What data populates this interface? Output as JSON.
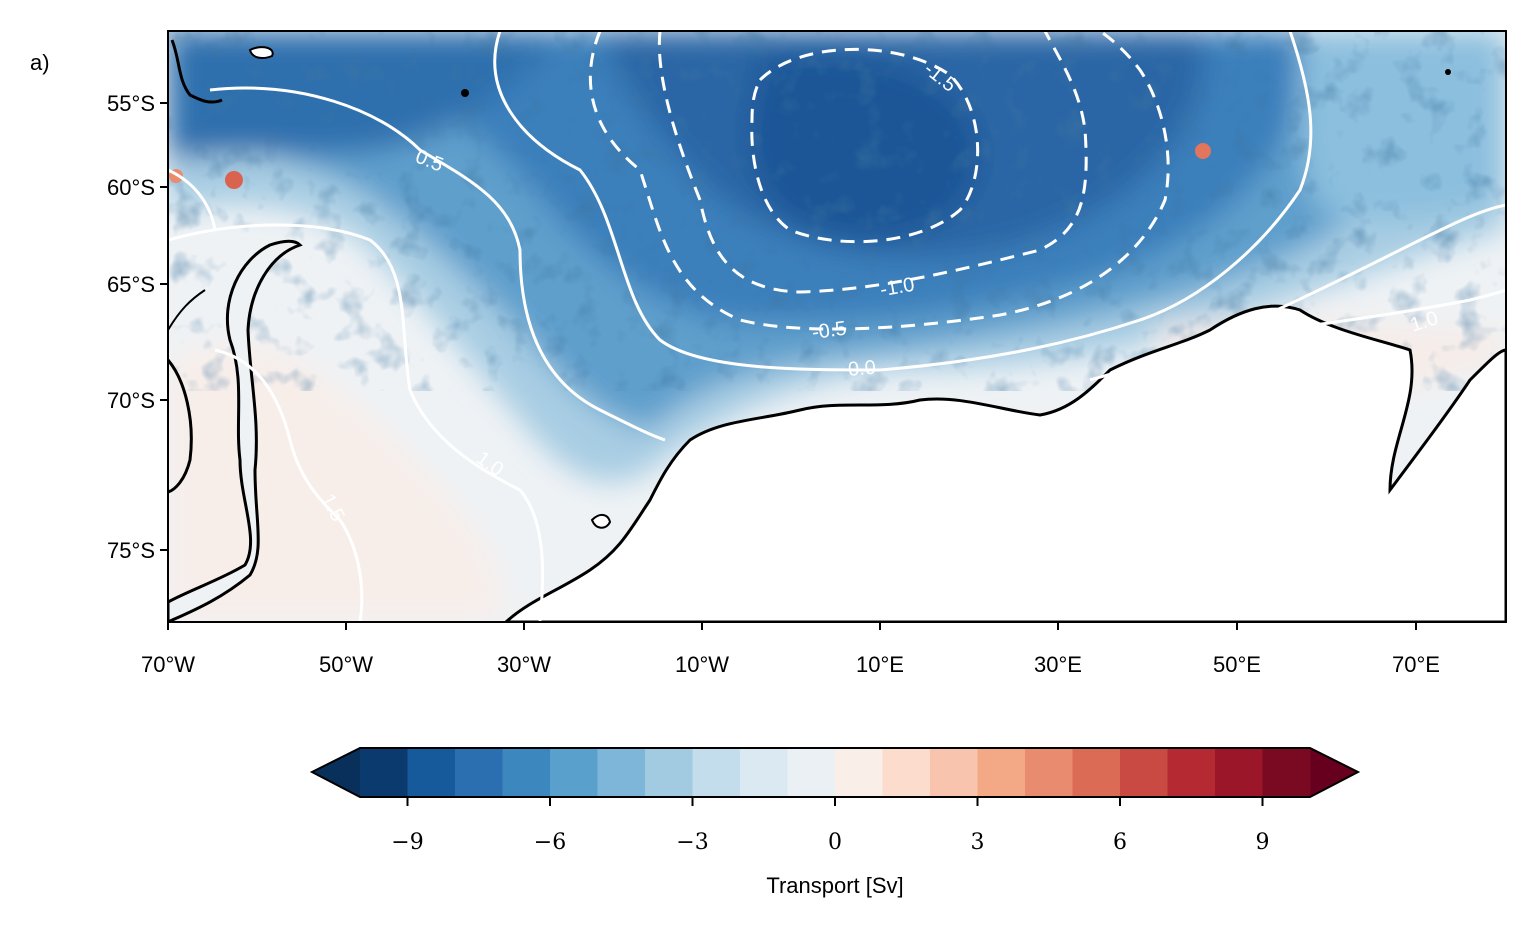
{
  "panel_label": "a)",
  "map": {
    "lat_ticks": [
      "55°S",
      "60°S",
      "65°S",
      "70°S",
      "75°S"
    ],
    "lon_ticks": [
      "70°W",
      "50°W",
      "30°W",
      "10°W",
      "10°E",
      "30°E",
      "50°E",
      "70°E"
    ],
    "contour_labels": [
      "-1.5",
      "-1.0",
      "-0.5",
      "0.0",
      "0.5",
      "1.0",
      "1.0",
      "1.5",
      "1.0"
    ],
    "contour_color": "#ffffff",
    "coastline_color": "#000000"
  },
  "colorbar": {
    "label": "Transport [Sv]",
    "ticks": [
      "−9",
      "−6",
      "−3",
      "0",
      "3",
      "6",
      "9"
    ],
    "tick_values": [
      -9,
      -6,
      -3,
      0,
      3,
      6,
      9
    ],
    "range": [
      -10,
      10
    ],
    "extend": "both",
    "colors": [
      "#0b3b6e",
      "#175a9b",
      "#2c6fb1",
      "#3d87bf",
      "#5aa0cc",
      "#7db6d8",
      "#a2cbe2",
      "#c3ddec",
      "#dbe9f2",
      "#eaf0f4",
      "#faeee9",
      "#fcdccd",
      "#f8c4ad",
      "#f3a985",
      "#e88b6e",
      "#db6b55",
      "#c84a43",
      "#b52a32",
      "#9a1628",
      "#7a0a22"
    ],
    "under_color": "#08305a",
    "over_color": "#67001f"
  }
}
